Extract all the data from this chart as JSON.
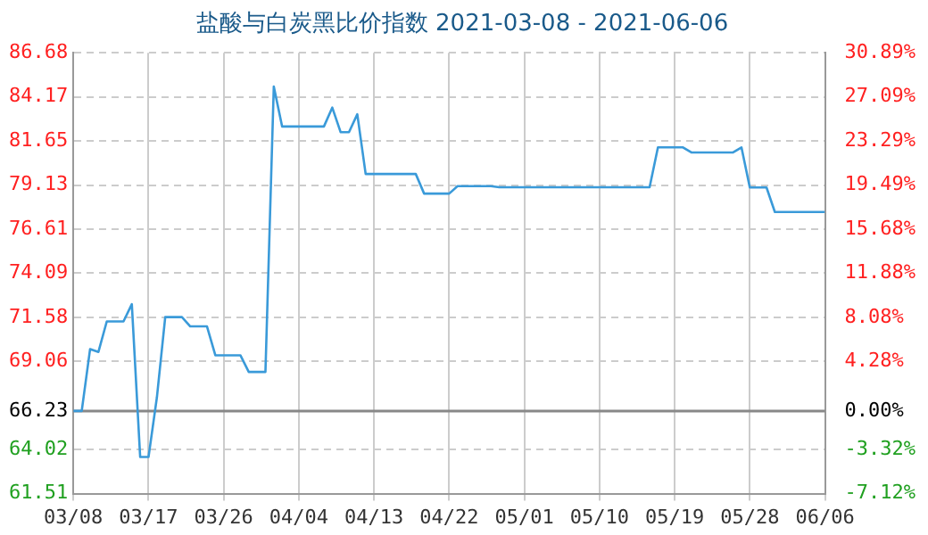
{
  "chart_data": {
    "type": "line",
    "title": "盐酸与白炭黑比价指数 2021-03-08 - 2021-06-06",
    "x": [
      "2021-03-08",
      "2021-03-09",
      "2021-03-10",
      "2021-03-11",
      "2021-03-12",
      "2021-03-14",
      "2021-03-15",
      "2021-03-16",
      "2021-03-17",
      "2021-03-18",
      "2021-03-19",
      "2021-03-21",
      "2021-03-22",
      "2021-03-24",
      "2021-03-25",
      "2021-03-28",
      "2021-03-29",
      "2021-03-31",
      "2021-04-01",
      "2021-04-02",
      "2021-04-07",
      "2021-04-08",
      "2021-04-09",
      "2021-04-10",
      "2021-04-11",
      "2021-04-12",
      "2021-04-18",
      "2021-04-19",
      "2021-04-22",
      "2021-04-23",
      "2021-04-27",
      "2021-04-28",
      "2021-05-16",
      "2021-05-17",
      "2021-05-20",
      "2021-05-21",
      "2021-05-26",
      "2021-05-27",
      "2021-05-28",
      "2021-05-30",
      "2021-05-31",
      "2021-06-06"
    ],
    "series": [
      {
        "color": "#3a9ad9",
        "values": [
          66.23,
          66.23,
          69.76,
          69.6,
          71.34,
          71.34,
          72.33,
          63.6,
          63.6,
          67.0,
          71.59,
          71.59,
          71.06,
          71.06,
          69.41,
          69.41,
          68.46,
          68.46,
          84.75,
          82.47,
          82.47,
          83.55,
          82.15,
          82.15,
          83.17,
          79.76,
          79.76,
          78.64,
          78.64,
          79.07,
          79.07,
          79.0,
          79.0,
          81.28,
          81.28,
          80.99,
          80.99,
          81.28,
          78.99,
          78.99,
          77.59,
          77.59
        ]
      }
    ],
    "xlim": [
      "2021-03-08",
      "2021-06-06"
    ],
    "xticks": [
      {
        "value": "2021-03-08",
        "label": "03/08"
      },
      {
        "value": "2021-03-17",
        "label": "03/17"
      },
      {
        "value": "2021-03-26",
        "label": "03/26"
      },
      {
        "value": "2021-04-04",
        "label": "04/04"
      },
      {
        "value": "2021-04-13",
        "label": "04/13"
      },
      {
        "value": "2021-04-22",
        "label": "04/22"
      },
      {
        "value": "2021-05-01",
        "label": "05/01"
      },
      {
        "value": "2021-05-10",
        "label": "05/10"
      },
      {
        "value": "2021-05-19",
        "label": "05/19"
      },
      {
        "value": "2021-05-28",
        "label": "05/28"
      },
      {
        "value": "2021-06-06",
        "label": "06/06"
      }
    ],
    "ylim": [
      61.51,
      86.68
    ],
    "yticks": [
      61.51,
      64.02,
      66.23,
      69.06,
      71.58,
      74.09,
      76.61,
      79.13,
      81.65,
      84.17,
      86.68
    ],
    "y2lim": [
      -7.12,
      30.89
    ],
    "y2ticks": [
      {
        "value": -7.12,
        "label": "-7.12%"
      },
      {
        "value": -3.32,
        "label": "-3.32%"
      },
      {
        "value": 0,
        "label": "0.00%"
      },
      {
        "value": 4.28,
        "label": "4.28%"
      },
      {
        "value": 8.08,
        "label": "8.08%"
      },
      {
        "value": 11.88,
        "label": "11.88%"
      },
      {
        "value": 15.68,
        "label": "15.68%"
      },
      {
        "value": 19.49,
        "label": "19.49%"
      },
      {
        "value": 23.29,
        "label": "23.29%"
      },
      {
        "value": 27.09,
        "label": "27.09%"
      },
      {
        "value": 30.89,
        "label": "30.89%"
      }
    ],
    "ref_lines": [
      {
        "axis": "y2",
        "value": 0,
        "color": "#888888"
      }
    ],
    "grid": true,
    "legend": false,
    "marker": "none",
    "line_style": "solid"
  }
}
